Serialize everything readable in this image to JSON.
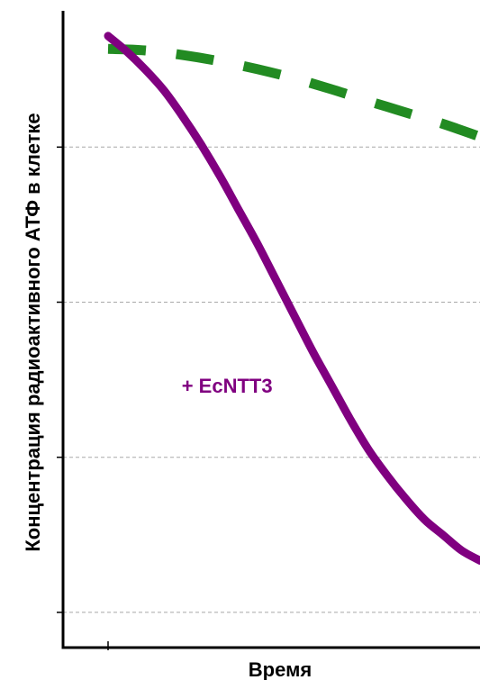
{
  "chart_data": {
    "type": "line",
    "xlabel": "Время",
    "ylabel": "Концентрация радиоактивного АТФ в клетке",
    "xlim": [
      0,
      100
    ],
    "ylim": [
      0,
      100
    ],
    "grid": true,
    "y_gridlines": [
      3.5,
      33.5,
      63.5,
      93.5
    ],
    "x_ticks_labels": [],
    "y_ticks_labels": [],
    "annotations": [
      {
        "text": "+ EcNTT3",
        "x": 32,
        "y": 46,
        "color": "#800080"
      }
    ],
    "series": [
      {
        "color": "#228B22",
        "style": "dashed",
        "x": [
          0,
          10,
          20,
          30,
          40,
          50,
          60,
          70,
          80,
          90,
          100
        ],
        "y": [
          112.5,
          112.2,
          111.3,
          110.1,
          108.6,
          106.8,
          104.7,
          102.4,
          100.2,
          98.0,
          95.5
        ]
      },
      {
        "color": "#800080",
        "style": "solid",
        "x": [
          0,
          5,
          10,
          15,
          20,
          25,
          30,
          35,
          40,
          45,
          50,
          55,
          60,
          65,
          70,
          75,
          80,
          85,
          90,
          95,
          100
        ],
        "y": [
          115,
          112,
          108.5,
          104.5,
          99.5,
          94,
          88,
          81.5,
          75,
          68,
          61,
          54,
          47.5,
          41,
          35,
          30,
          25.5,
          21.5,
          18.5,
          15.5,
          13.5
        ]
      }
    ]
  }
}
